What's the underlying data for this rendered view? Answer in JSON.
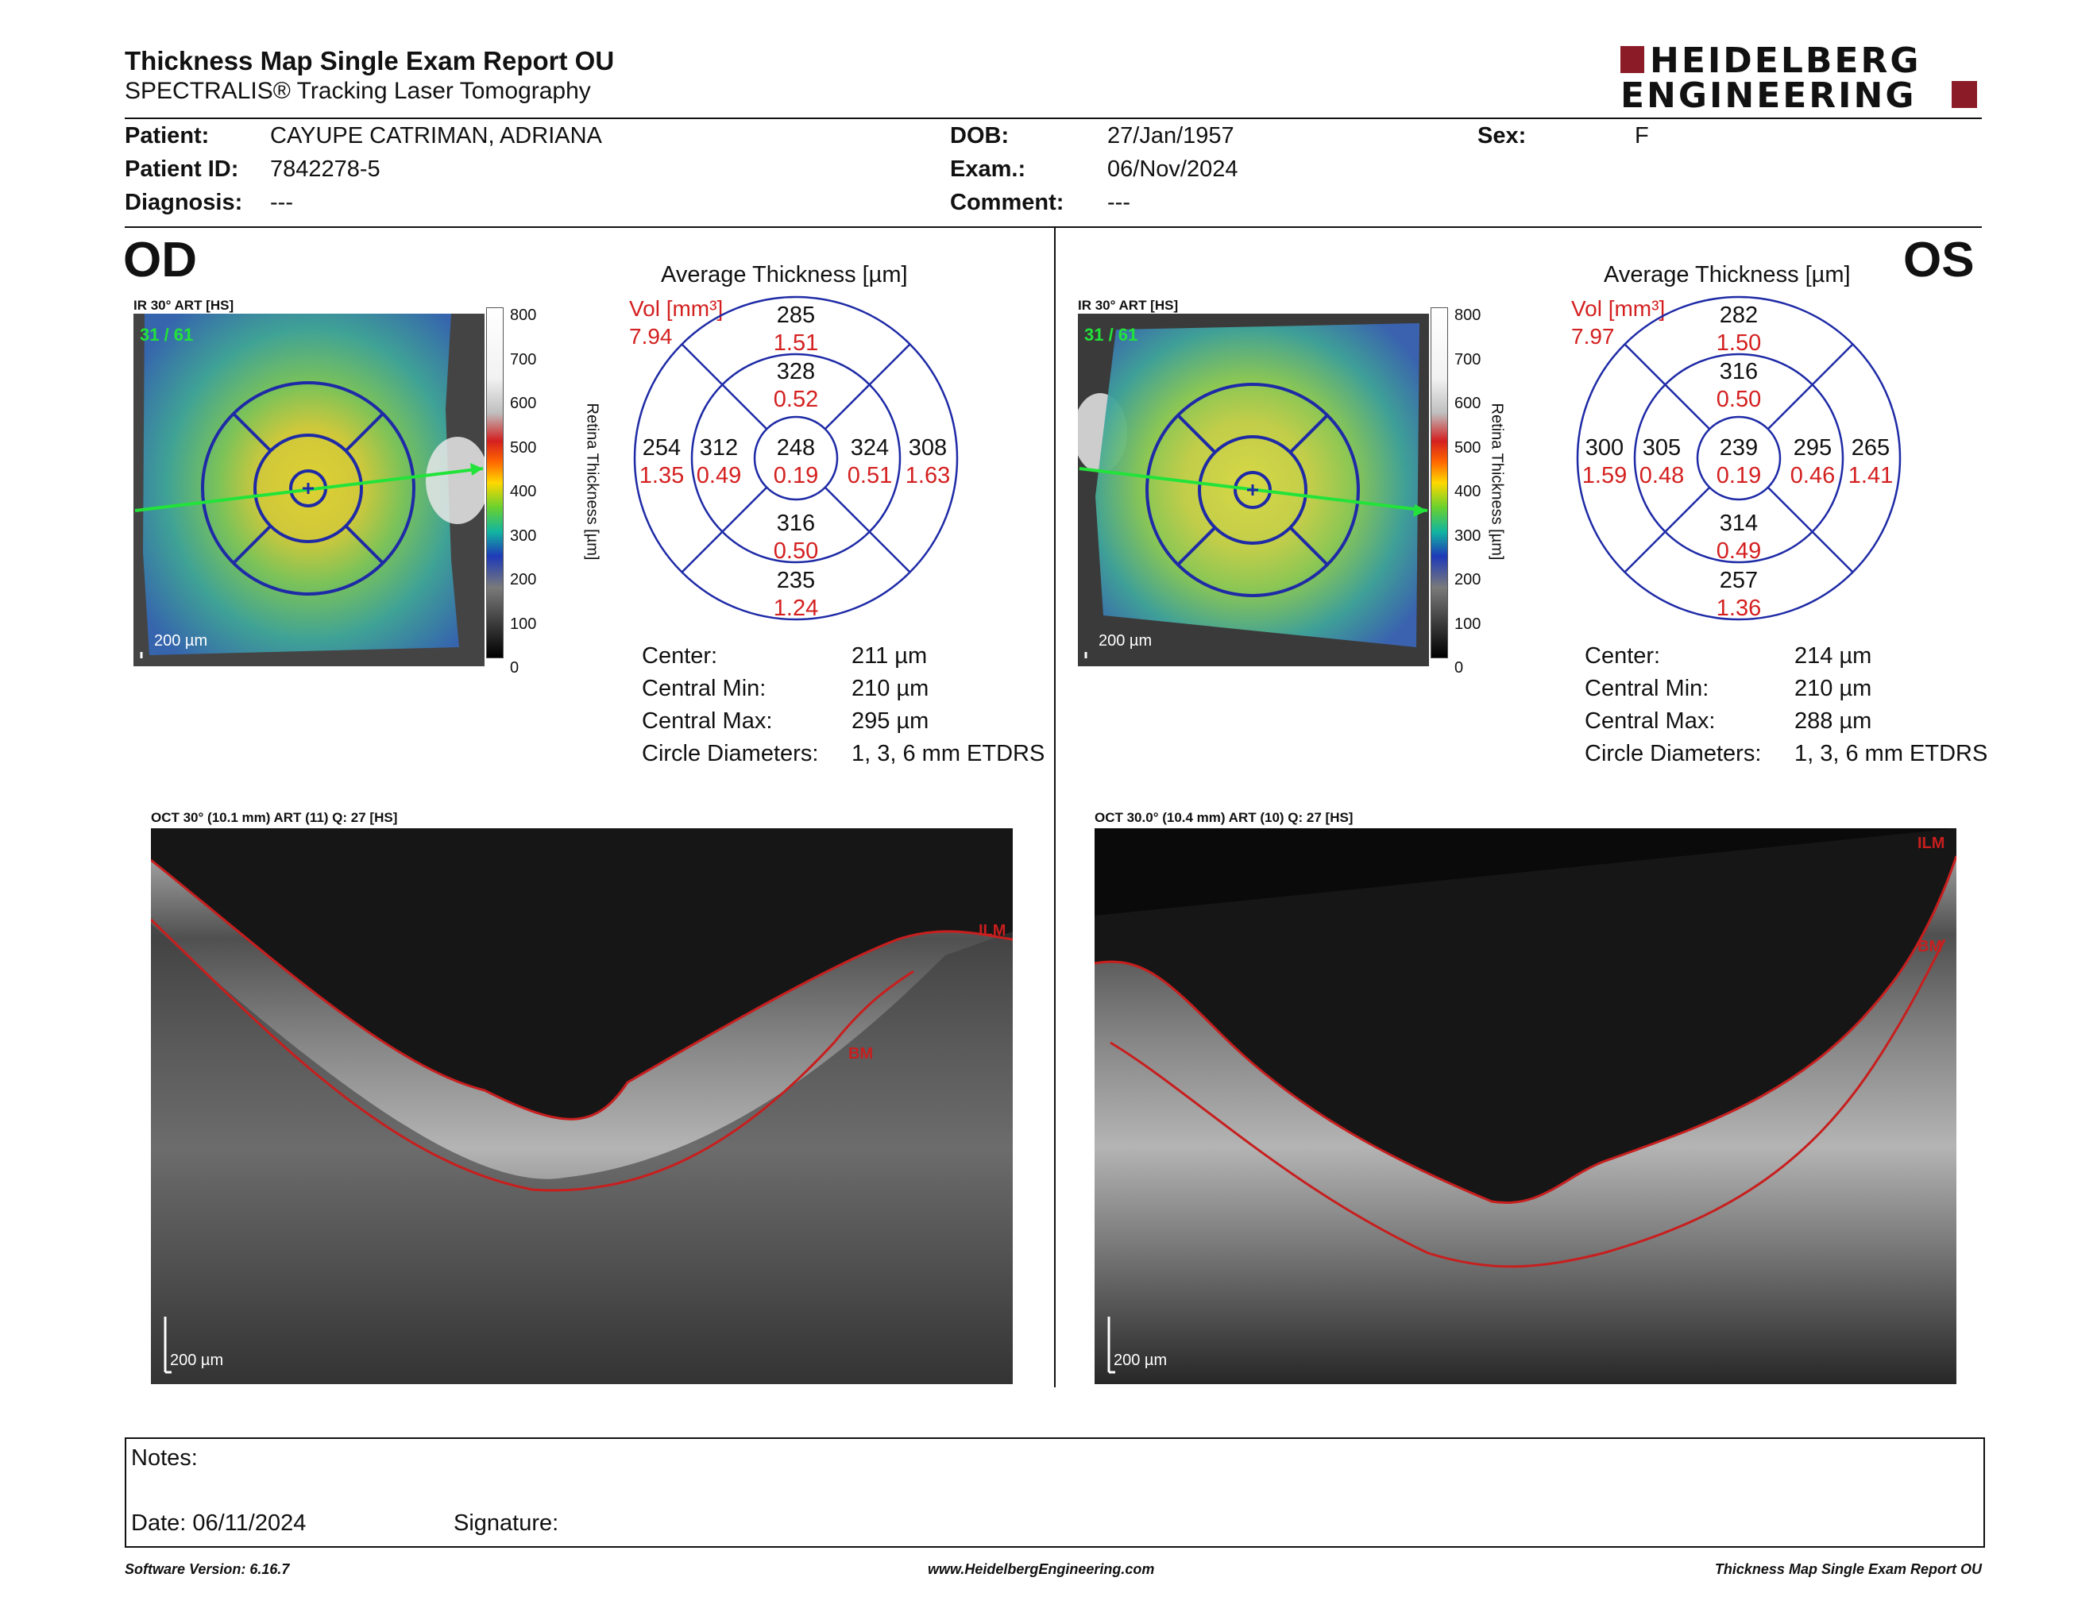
{
  "header": {
    "title": "Thickness Map Single Exam Report OU",
    "subtitle": "SPECTRALIS® Tracking Laser Tomography",
    "logo_line1": "HEIDELBERG",
    "logo_line2": "ENGINEERING"
  },
  "patient": {
    "patient_label": "Patient:",
    "patient_value": "CAYUPE CATRIMAN, ADRIANA",
    "id_label": "Patient ID:",
    "id_value": "7842278-5",
    "diagnosis_label": "Diagnosis:",
    "diagnosis_value": "---",
    "dob_label": "DOB:",
    "dob_value": "27/Jan/1957",
    "exam_label": "Exam.:",
    "exam_value": "06/Nov/2024",
    "comment_label": "Comment:",
    "comment_value": "---",
    "sex_label": "Sex:",
    "sex_value": "F"
  },
  "od": {
    "eye_label": "OD",
    "ir_label": "IR 30° ART [HS]",
    "frame": "31 / 61",
    "scale": "200 µm",
    "avg_title": "Average Thickness [µm]",
    "vol_label": "Vol [mm³]",
    "vol_total": "7.94",
    "grid": {
      "outer_sup": "285",
      "outer_sup_vol": "1.51",
      "inner_sup": "328",
      "inner_sup_vol": "0.52",
      "outer_left": "254",
      "outer_left_vol": "1.35",
      "inner_left": "312",
      "inner_left_vol": "0.49",
      "center": "248",
      "center_vol": "0.19",
      "inner_right": "324",
      "inner_right_vol": "0.51",
      "outer_right": "308",
      "outer_right_vol": "1.63",
      "inner_inf": "316",
      "inner_inf_vol": "0.50",
      "outer_inf": "235",
      "outer_inf_vol": "1.24"
    },
    "stats": {
      "center_label": "Center:",
      "center_value": "211 µm",
      "min_label": "Central Min:",
      "min_value": "210 µm",
      "max_label": "Central Max:",
      "max_value": "295 µm",
      "diam_label": "Circle Diameters:",
      "diam_value": "1, 3, 6 mm ETDRS"
    },
    "oct_label": "OCT 30° (10.1 mm) ART (11) Q: 27 [HS]",
    "oct_scale": "200 µm",
    "ilm": "ILM",
    "bm": "BM"
  },
  "os": {
    "eye_label": "OS",
    "ir_label": "IR 30° ART [HS]",
    "frame": "31 / 61",
    "scale": "200 µm",
    "avg_title": "Average Thickness [µm]",
    "vol_label": "Vol [mm³]",
    "vol_total": "7.97",
    "grid": {
      "outer_sup": "282",
      "outer_sup_vol": "1.50",
      "inner_sup": "316",
      "inner_sup_vol": "0.50",
      "outer_left": "300",
      "outer_left_vol": "1.59",
      "inner_left": "305",
      "inner_left_vol": "0.48",
      "center": "239",
      "center_vol": "0.19",
      "inner_right": "295",
      "inner_right_vol": "0.46",
      "outer_right": "265",
      "outer_right_vol": "1.41",
      "inner_inf": "314",
      "inner_inf_vol": "0.49",
      "outer_inf": "257",
      "outer_inf_vol": "1.36"
    },
    "stats": {
      "center_label": "Center:",
      "center_value": "214 µm",
      "min_label": "Central Min:",
      "min_value": "210 µm",
      "max_label": "Central Max:",
      "max_value": "288 µm",
      "diam_label": "Circle Diameters:",
      "diam_value": "1, 3, 6 mm ETDRS"
    },
    "oct_label": "OCT 30.0° (10.4 mm) ART (10) Q: 27 [HS]",
    "oct_scale": "200 µm",
    "ilm": "ILM",
    "bm": "BM"
  },
  "colorbar": {
    "ticks": [
      "800",
      "700",
      "600",
      "500",
      "400",
      "300",
      "200",
      "100",
      "0"
    ],
    "label": "Retina Thickness [µm]"
  },
  "notes": {
    "notes_label": "Notes:",
    "date_label": "Date: 06/11/2024",
    "signature_label": "Signature:"
  },
  "footer": {
    "version": "Software Version: 6.16.7",
    "website": "www.HeidelbergEngineering.com",
    "report": "Thickness Map Single Exam Report OU"
  },
  "colors": {
    "accent": "#8c1b28",
    "vol_red": "#d42020",
    "grid_blue": "#1e2aa6",
    "trace_red": "#c81e1e"
  }
}
